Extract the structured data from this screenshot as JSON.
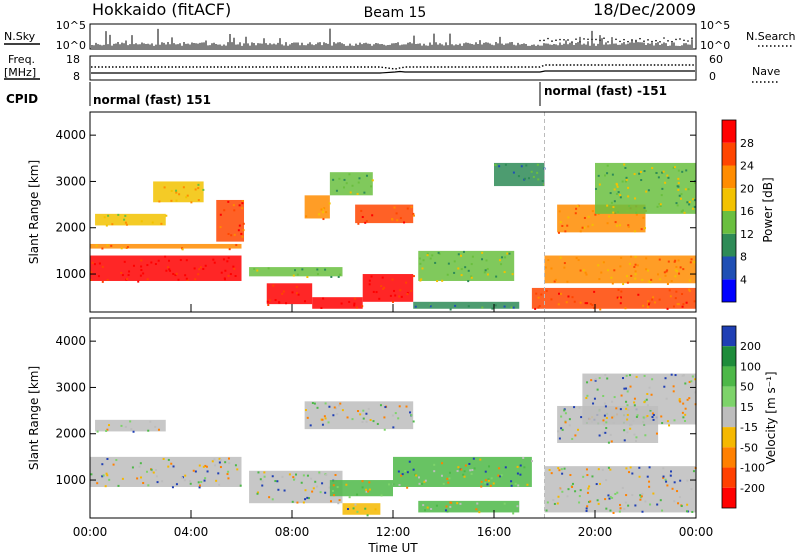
{
  "header": {
    "station": "Hokkaido (fitACF)",
    "beam": "Beam 15",
    "date": "18/Dec/2009"
  },
  "top_panels": {
    "nsky_label": "N.Sky",
    "nsky_ticks": [
      "10^5",
      "10^0"
    ],
    "nsearch_label": "N.Search",
    "nsearch_ticks": [
      "10^5",
      "10^0"
    ],
    "freq_label_1": "Freq.",
    "freq_label_2": "[MHz]",
    "freq_ticks": [
      "18",
      "8"
    ],
    "nave_label": "Nave",
    "nave_ticks": [
      "60",
      "0"
    ],
    "cpid_label": "CPID",
    "cpid_segments": [
      "normal (fast) 151",
      "normal (fast) -151"
    ]
  },
  "chart_data": [
    {
      "type": "heatmap",
      "name": "Power",
      "ylabel": "Slant Range [km]",
      "yticks": [
        1000,
        2000,
        3000,
        4000
      ],
      "xticks": [
        "00:00",
        "04:00",
        "08:00",
        "12:00",
        "16:00",
        "20:00",
        "00:00"
      ],
      "xlim_hours": [
        0,
        24
      ],
      "ylim_km": [
        180,
        4500
      ],
      "colorbar_label": "Power [dB]",
      "colorbar_ticks": [
        4,
        8,
        12,
        16,
        20,
        24,
        28
      ],
      "colorbar_colors": [
        "#0000ff",
        "#1f4fb4",
        "#2e8b57",
        "#6abf3f",
        "#f2c200",
        "#ff8c00",
        "#ff4500",
        "#ff0000"
      ],
      "colorbar_range": [
        0,
        32
      ],
      "features": [
        {
          "t0": 0.0,
          "t1": 6.0,
          "r0": 850,
          "r1": 1400,
          "level": 29
        },
        {
          "t0": 0.0,
          "t1": 6.0,
          "r0": 1550,
          "r1": 1650,
          "level": 22
        },
        {
          "t0": 0.2,
          "t1": 3.0,
          "r0": 2050,
          "r1": 2300,
          "level": 19
        },
        {
          "t0": 2.5,
          "t1": 4.5,
          "r0": 2550,
          "r1": 3000,
          "level": 18
        },
        {
          "t0": 5.0,
          "t1": 6.1,
          "r0": 1700,
          "r1": 2600,
          "level": 27
        },
        {
          "t0": 6.3,
          "t1": 10.0,
          "r0": 950,
          "r1": 1150,
          "level": 14
        },
        {
          "t0": 7.0,
          "t1": 8.8,
          "r0": 350,
          "r1": 800,
          "level": 29
        },
        {
          "t0": 8.8,
          "t1": 10.8,
          "r0": 250,
          "r1": 500,
          "level": 30
        },
        {
          "t0": 10.8,
          "t1": 12.8,
          "r0": 400,
          "r1": 1000,
          "level": 30
        },
        {
          "t0": 8.5,
          "t1": 9.5,
          "r0": 2200,
          "r1": 2700,
          "level": 22
        },
        {
          "t0": 9.5,
          "t1": 11.2,
          "r0": 2700,
          "r1": 3200,
          "level": 14
        },
        {
          "t0": 10.5,
          "t1": 12.8,
          "r0": 2100,
          "r1": 2500,
          "level": 24
        },
        {
          "t0": 13.0,
          "t1": 16.8,
          "r0": 850,
          "r1": 1500,
          "level": 12
        },
        {
          "t0": 12.8,
          "t1": 17.0,
          "r0": 250,
          "r1": 400,
          "level": 8
        },
        {
          "t0": 16.0,
          "t1": 18.0,
          "r0": 2900,
          "r1": 3400,
          "level": 10
        },
        {
          "t0": 17.5,
          "t1": 24.0,
          "r0": 250,
          "r1": 700,
          "level": 24
        },
        {
          "t0": 18.0,
          "t1": 24.0,
          "r0": 800,
          "r1": 1400,
          "level": 20
        },
        {
          "t0": 18.5,
          "t1": 22.0,
          "r0": 1900,
          "r1": 2500,
          "level": 22
        },
        {
          "t0": 20.0,
          "t1": 24.0,
          "r0": 2300,
          "r1": 3400,
          "level": 14
        }
      ]
    },
    {
      "type": "heatmap",
      "name": "Velocity",
      "ylabel": "Slant Range [km]",
      "yticks": [
        1000,
        2000,
        3000,
        4000
      ],
      "xticks": [
        "00:00",
        "04:00",
        "08:00",
        "12:00",
        "16:00",
        "20:00",
        "00:00"
      ],
      "xlabel": "Time UT",
      "xlim_hours": [
        0,
        24
      ],
      "ylim_km": [
        180,
        4500
      ],
      "colorbar_label": "Velocity [m s⁻¹]",
      "colorbar_ticks": [
        "200",
        "100",
        "50",
        "15",
        "-15",
        "-50",
        "-100",
        "-200"
      ],
      "colorbar_colors": [
        "#1f3fb4",
        "#1e8c3a",
        "#4db848",
        "#7dd36a",
        "#bdbdbd",
        "#f5b800",
        "#ff8000",
        "#ff4000",
        "#ff0000"
      ],
      "features": [
        {
          "t0": 0.0,
          "t1": 6.0,
          "r0": 850,
          "r1": 1500,
          "kind": "gray"
        },
        {
          "t0": 0.2,
          "t1": 3.0,
          "r0": 2050,
          "r1": 2300,
          "kind": "gray"
        },
        {
          "t0": 6.3,
          "t1": 10.0,
          "r0": 500,
          "r1": 1200,
          "kind": "gray"
        },
        {
          "t0": 8.5,
          "t1": 12.8,
          "r0": 2100,
          "r1": 2700,
          "kind": "gray"
        },
        {
          "t0": 9.5,
          "t1": 12.0,
          "r0": 650,
          "r1": 1000,
          "kind": "green"
        },
        {
          "t0": 12.0,
          "t1": 17.5,
          "r0": 850,
          "r1": 1500,
          "kind": "green"
        },
        {
          "t0": 10.0,
          "t1": 11.5,
          "r0": 250,
          "r1": 500,
          "kind": "orange"
        },
        {
          "t0": 13.0,
          "t1": 17.0,
          "r0": 300,
          "r1": 550,
          "kind": "green"
        },
        {
          "t0": 18.0,
          "t1": 24.0,
          "r0": 300,
          "r1": 1300,
          "kind": "gray"
        },
        {
          "t0": 18.5,
          "t1": 22.5,
          "r0": 1800,
          "r1": 2600,
          "kind": "gray"
        },
        {
          "t0": 19.5,
          "t1": 24.0,
          "r0": 2200,
          "r1": 3300,
          "kind": "gray"
        }
      ]
    }
  ]
}
